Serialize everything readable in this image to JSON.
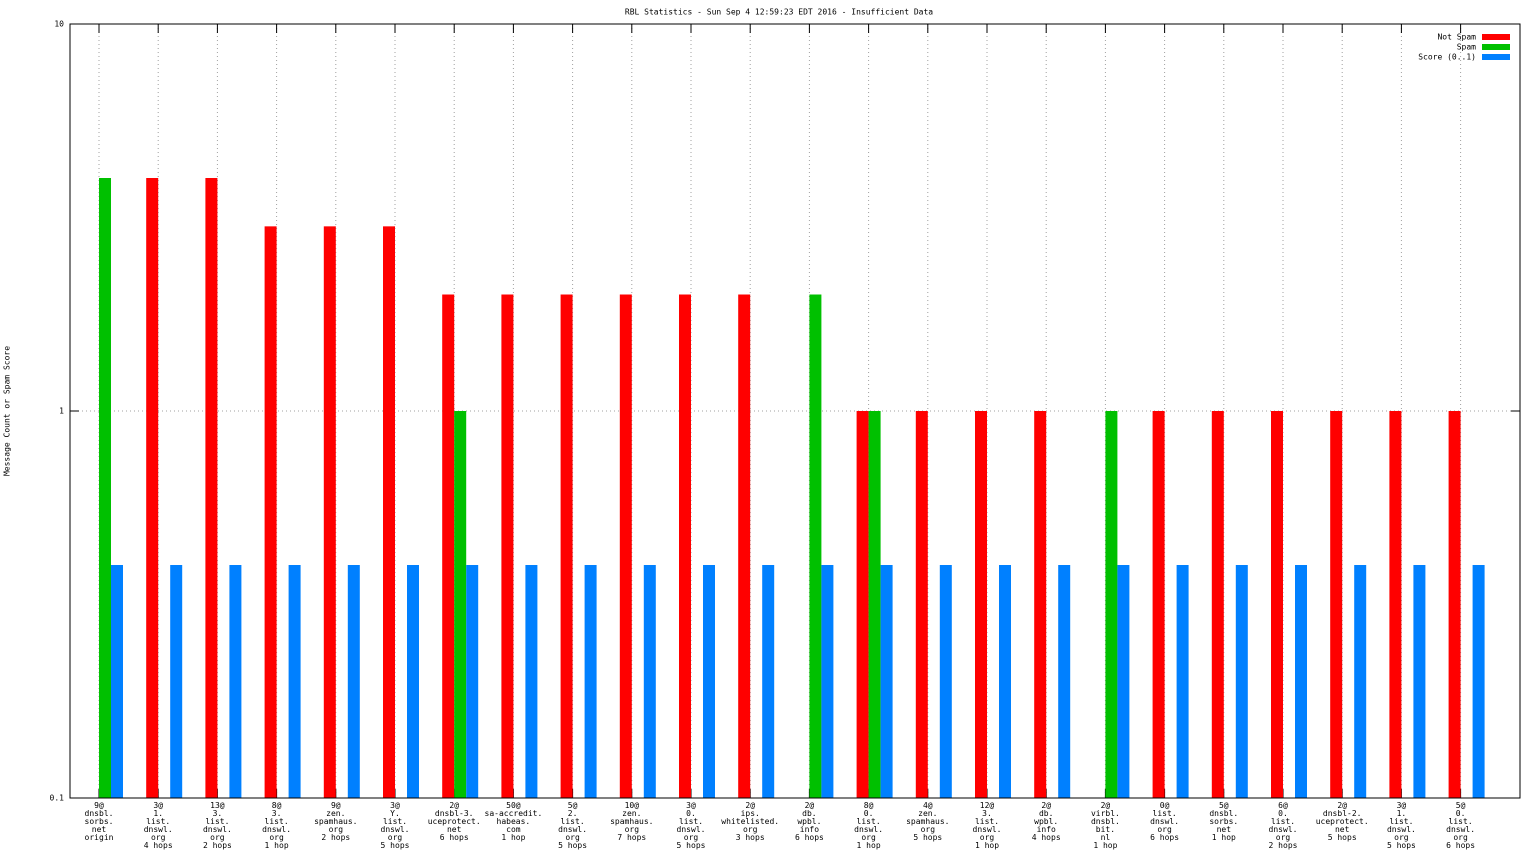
{
  "chart_data": {
    "type": "bar",
    "title": "RBL Statistics - Sun Sep  4 12:59:23 EDT 2016 - Insufficient Data",
    "ylabel": "Message Count or Spam Score",
    "categories": [
      "9@\ndnsbl.\nsorbs.\nnet\norigin",
      "3@\n1.\nlist.\ndnswl.\norg\n4 hops",
      "13@\n3.\nlist.\ndnswl.\norg\n2 hops",
      "8@\n3.\nlist.\ndnswl.\norg\n1 hop",
      "9@\nzen.\nspamhaus.\norg\n2 hops",
      "3@\nY.\nlist.\ndnswl.\norg\n5 hops",
      "2@\ndnsbl-3.\nuceprotect.\nnet\n6 hops",
      "50@\nsa-accredit.\nhabeas.\ncom\n1 hop",
      "5@\n2.\nlist.\ndnswl.\norg\n5 hops",
      "10@\nzen.\nspamhaus.\norg\n7 hops",
      "3@\n0.\nlist.\ndnswl.\norg\n5 hops",
      "2@\nips.\nwhitelisted.\norg\n3 hops",
      "2@\ndb.\nwpbl.\ninfo\n6 hops",
      "8@\n0.\nlist.\ndnswl.\norg\n1 hop",
      "4@\nzen.\nspamhaus.\norg\n5 hops",
      "12@\n3.\nlist.\ndnswl.\norg\n1 hop",
      "2@\ndb.\nwpbl.\ninfo\n4 hops",
      "2@\nvirbl.\ndnsbl.\nbit.\nnl\n1 hop",
      "0@\nlist.\ndnswl.\norg\n6 hops",
      "5@\ndnsbl.\nsorbs.\nnet\n1 hop",
      "6@\n0.\nlist.\ndnswl.\norg\n2 hops",
      "2@\ndnsbl-2.\nuceprotect.\nnet\n5 hops",
      "3@\n1.\nlist.\ndnswl.\norg\n5 hops",
      "5@\n0.\nlist.\ndnswl.\norg\n6 hops"
    ],
    "series": [
      {
        "name": "Not Spam",
        "color": "#ff0000",
        "values": [
          null,
          4,
          4,
          3,
          3,
          3,
          2,
          2,
          2,
          2,
          2,
          2,
          null,
          1,
          1,
          1,
          1,
          null,
          1,
          1,
          1,
          1,
          1,
          1
        ]
      },
      {
        "name": "Spam",
        "color": "#00c000",
        "values": [
          4,
          null,
          null,
          null,
          null,
          null,
          1,
          null,
          null,
          null,
          null,
          null,
          2,
          1,
          null,
          null,
          null,
          1,
          null,
          null,
          null,
          null,
          null,
          null
        ]
      },
      {
        "name": "Score (0..1)",
        "color": "#0080ff",
        "values": [
          0.4,
          0.4,
          0.4,
          0.4,
          0.4,
          0.4,
          0.4,
          0.4,
          0.4,
          0.4,
          0.4,
          0.4,
          0.4,
          0.4,
          0.4,
          0.4,
          0.4,
          0.4,
          0.4,
          0.4,
          0.4,
          0.4,
          0.4,
          0.4
        ]
      }
    ],
    "ylim": [
      0.1,
      10
    ],
    "yticks": [
      0.1,
      1,
      10
    ],
    "log_y": true,
    "grid": true,
    "legend": "top-right"
  }
}
